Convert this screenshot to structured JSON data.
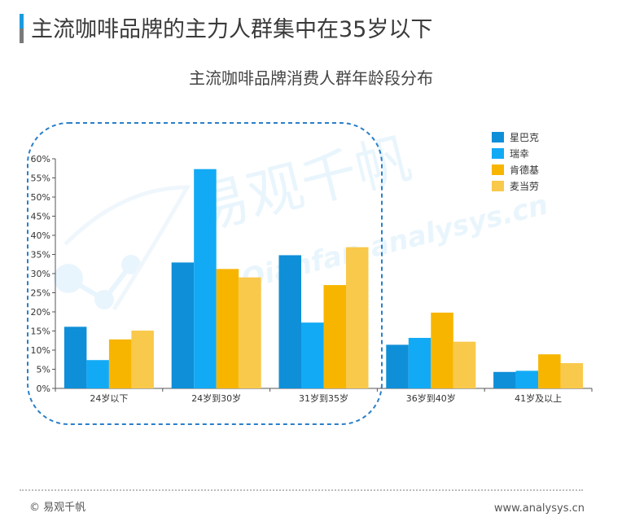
{
  "header": {
    "headline": "主流咖啡品牌的主力人群集中在35岁以下"
  },
  "footer": {
    "copyright": "© 易观千帆",
    "site": "www.analysys.cn"
  },
  "watermark": {
    "text_cn": "易观千帆",
    "text_en": "Qianfan.analysys.cn"
  },
  "colors": {
    "header_accent": "#1a9be0",
    "header_accent_lower": "#7a7a7a",
    "highlight_ellipse": "#2a7fc9"
  },
  "chart_data": {
    "type": "bar",
    "title": "主流咖啡品牌消费人群年龄段分布",
    "categories": [
      "24岁以下",
      "24岁到30岁",
      "31岁到35岁",
      "36岁到40岁",
      "41岁及以上"
    ],
    "series": [
      {
        "name": "星巴克",
        "color": "#0f8fd8",
        "values": [
          16.1,
          32.9,
          34.8,
          11.4,
          4.3
        ]
      },
      {
        "name": "瑞幸",
        "color": "#12aaf5",
        "values": [
          7.4,
          57.3,
          17.2,
          13.2,
          4.6
        ]
      },
      {
        "name": "肯德基",
        "color": "#f7b500",
        "values": [
          12.8,
          31.2,
          27.0,
          19.8,
          8.9
        ]
      },
      {
        "name": "麦当劳",
        "color": "#f9c94b",
        "values": [
          15.1,
          29.0,
          36.9,
          12.2,
          6.6
        ]
      }
    ],
    "ylim": [
      0,
      60
    ],
    "yticks": [
      "0%",
      "5%",
      "10%",
      "15%",
      "20%",
      "25%",
      "30%",
      "35%",
      "40%",
      "45%",
      "50%",
      "55%",
      "60%"
    ],
    "grid": false,
    "legend_position": "top-right",
    "highlight_note": "dashed rounded box around 24岁以下, 24岁到30岁, 31岁到35岁"
  }
}
